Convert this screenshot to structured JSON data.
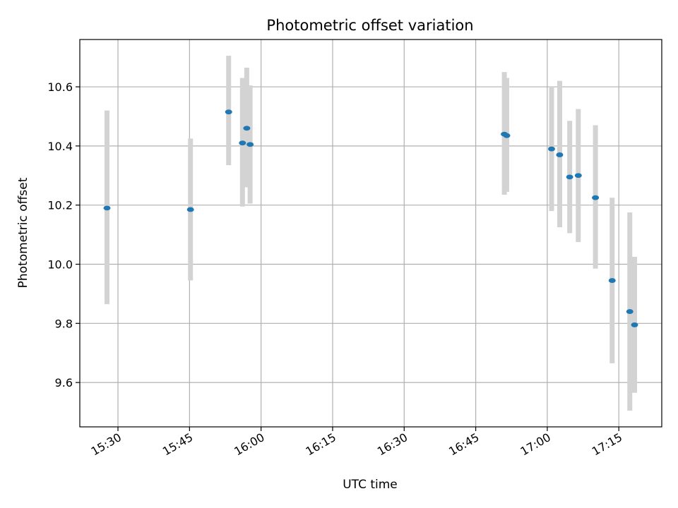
{
  "chart_data": {
    "type": "scatter",
    "title": "Photometric offset variation",
    "xlabel": "UTC time",
    "ylabel": "Photometric offset",
    "grid": true,
    "x_axis": {
      "unit": "time (HH:MM)",
      "range": [
        "15:22",
        "17:24"
      ],
      "ticks": [
        "15:30",
        "15:45",
        "16:00",
        "16:15",
        "16:30",
        "16:45",
        "17:00",
        "17:15"
      ]
    },
    "y_axis": {
      "range": [
        9.45,
        10.76
      ],
      "ticks": [
        9.6,
        9.8,
        10.0,
        10.2,
        10.4,
        10.6
      ],
      "tick_labels": [
        "9.6",
        "9.8",
        "10.0",
        "10.2",
        "10.4",
        "10.6"
      ]
    },
    "colors": {
      "points": "#1f77b4",
      "errorbars": "#d3d3d3",
      "grid": "#b0b0b0"
    },
    "points": [
      {
        "x": "15:27.7",
        "y": 10.19,
        "ylow": 9.865,
        "yhigh": 10.52
      },
      {
        "x": "15:45.2",
        "y": 10.185,
        "ylow": 9.945,
        "yhigh": 10.425
      },
      {
        "x": "15:53.2",
        "y": 10.515,
        "ylow": 10.335,
        "yhigh": 10.705
      },
      {
        "x": "15:56.1",
        "y": 10.41,
        "ylow": 10.195,
        "yhigh": 10.63
      },
      {
        "x": "15:57.0",
        "y": 10.46,
        "ylow": 10.26,
        "yhigh": 10.665
      },
      {
        "x": "15:57.7",
        "y": 10.405,
        "ylow": 10.205,
        "yhigh": 10.605
      },
      {
        "x": "16:51.0",
        "y": 10.44,
        "ylow": 10.235,
        "yhigh": 10.65
      },
      {
        "x": "16:51.5",
        "y": 10.435,
        "ylow": 10.245,
        "yhigh": 10.63
      },
      {
        "x": "17:00.9",
        "y": 10.39,
        "ylow": 10.18,
        "yhigh": 10.6
      },
      {
        "x": "17:02.6",
        "y": 10.37,
        "ylow": 10.125,
        "yhigh": 10.62
      },
      {
        "x": "17:04.7",
        "y": 10.295,
        "ylow": 10.105,
        "yhigh": 10.485
      },
      {
        "x": "17:06.5",
        "y": 10.3,
        "ylow": 10.075,
        "yhigh": 10.525
      },
      {
        "x": "17:10.1",
        "y": 10.225,
        "ylow": 9.985,
        "yhigh": 10.47
      },
      {
        "x": "17:13.6",
        "y": 9.945,
        "ylow": 9.665,
        "yhigh": 10.225
      },
      {
        "x": "17:17.3",
        "y": 9.84,
        "ylow": 9.505,
        "yhigh": 10.175
      },
      {
        "x": "17:18.3",
        "y": 9.795,
        "ylow": 9.565,
        "yhigh": 10.025
      }
    ]
  }
}
